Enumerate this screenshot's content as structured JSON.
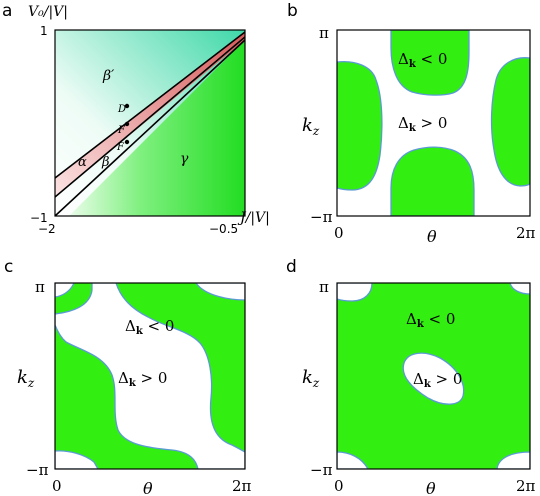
{
  "panels": {
    "a": {
      "letter": "a",
      "y_label": "V₀/|V|",
      "x_label": "J/|V|",
      "y_ticks": [
        "1",
        "−1"
      ],
      "x_ticks": [
        "−2",
        "−0.5"
      ],
      "phase_labels": {
        "beta_prime": "β′",
        "alpha": "α",
        "beta": "β",
        "gamma": "γ"
      },
      "points": {
        "D": "D",
        "F_top": "F",
        "F_bottom": "F"
      },
      "colors": {
        "green": "#22dd22",
        "teal": "#3fd8a8",
        "pink": "#d86060"
      }
    },
    "b": {
      "letter": "b",
      "y_label": "k",
      "y_label_sub": "z",
      "x_label": "θ",
      "y_ticks": [
        "π",
        "−π"
      ],
      "x_ticks": [
        "0",
        "2π"
      ],
      "region_neg": "Δ",
      "region_neg_sub": "k",
      "region_neg_rel": " < 0",
      "region_pos": "Δ",
      "region_pos_sub": "k",
      "region_pos_rel": " > 0"
    },
    "c": {
      "letter": "c",
      "y_label": "k",
      "y_label_sub": "z",
      "x_label": "θ",
      "y_ticks": [
        "π",
        "−π"
      ],
      "x_ticks": [
        "0",
        "2π"
      ],
      "region_neg": "Δ",
      "region_neg_sub": "k",
      "region_neg_rel": " < 0",
      "region_pos": "Δ",
      "region_pos_sub": "k",
      "region_pos_rel": " > 0"
    },
    "d": {
      "letter": "d",
      "y_label": "k",
      "y_label_sub": "z",
      "x_label": "θ",
      "y_ticks": [
        "π",
        "−π"
      ],
      "x_ticks": [
        "0",
        "2π"
      ],
      "region_neg": "Δ",
      "region_neg_sub": "k",
      "region_neg_rel": " < 0",
      "region_pos": "Δ",
      "region_pos_sub": "k",
      "region_pos_rel": " > 0"
    }
  }
}
